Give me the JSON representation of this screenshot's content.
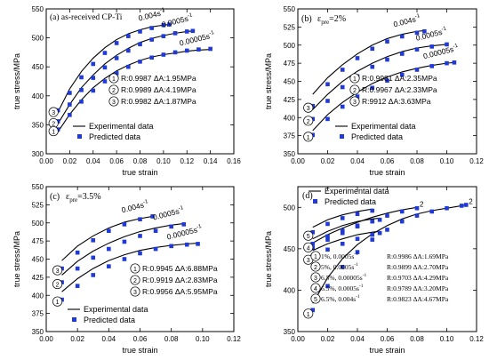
{
  "chart_data": [
    {
      "type": "scatter",
      "panel_label": "(a) as-received CP-Ti",
      "xlabel": "true strain",
      "ylabel": "true stress/MPa",
      "xlim": [
        0.0,
        0.16
      ],
      "ylim": [
        300,
        550
      ],
      "xticks": [
        "0.00",
        "0.02",
        "0.04",
        "0.06",
        "0.08",
        "0.10",
        "0.12",
        "0.14",
        "0.16"
      ],
      "yticks": [
        "300",
        "350",
        "400",
        "450",
        "500",
        "550"
      ],
      "legend": {
        "placement": "bottom-right",
        "entries": [
          "Experimental data",
          "Predicted data"
        ]
      },
      "stats": [
        {
          "marker": "①",
          "text": "R:0.9987 ΔA:1.95MPa"
        },
        {
          "marker": "②",
          "text": "R:0.9989 ΔA:4.19MPa"
        },
        {
          "marker": "③",
          "text": "R:0.9982 ΔA:1.87MPa"
        }
      ],
      "series": [
        {
          "name": "0.004s-1",
          "curve_label": "0.004s",
          "curve_label_sup": "-1",
          "marker": "③",
          "x": [
            0.01,
            0.02,
            0.03,
            0.04,
            0.05,
            0.06,
            0.07,
            0.08,
            0.09,
            0.1,
            0.105
          ],
          "exp_y": [
            372,
            412,
            442,
            465,
            483,
            497,
            507,
            514,
            519,
            522,
            523
          ],
          "pred_y": [
            375,
            405,
            432,
            455,
            474,
            491,
            503,
            511,
            517,
            522,
            523
          ]
        },
        {
          "name": "0.0005s-1",
          "curve_label": "0.0005s",
          "curve_label_sup": "-1",
          "marker": "②",
          "x": [
            0.01,
            0.02,
            0.03,
            0.04,
            0.05,
            0.06,
            0.07,
            0.08,
            0.09,
            0.1,
            0.11,
            0.12,
            0.125
          ],
          "exp_y": [
            352,
            385,
            414,
            436,
            455,
            470,
            482,
            492,
            499,
            504,
            508,
            511,
            512
          ],
          "pred_y": [
            356,
            385,
            410,
            431,
            449,
            465,
            478,
            489,
            497,
            503,
            508,
            511,
            512
          ]
        },
        {
          "name": "0.00005s-1",
          "curve_label": "0.00005s",
          "curve_label_sup": "-1",
          "marker": "①",
          "x": [
            0.01,
            0.02,
            0.03,
            0.04,
            0.05,
            0.06,
            0.07,
            0.08,
            0.09,
            0.1,
            0.11,
            0.12,
            0.13,
            0.14
          ],
          "exp_y": [
            338,
            368,
            393,
            414,
            430,
            443,
            453,
            461,
            467,
            471,
            474,
            477,
            479,
            480
          ],
          "pred_y": [
            342,
            367,
            390,
            409,
            425,
            439,
            450,
            459,
            466,
            471,
            475,
            478,
            480,
            481
          ]
        }
      ]
    },
    {
      "type": "scatter",
      "panel_label": "(b)",
      "panel_eps_main": "ε",
      "panel_eps_sub": "pre",
      "panel_eps_value": "=2%",
      "xlabel": "true strain",
      "ylabel": "true stress/MPa",
      "xlim": [
        0.0,
        0.12
      ],
      "ylim": [
        350,
        550
      ],
      "xticks": [
        "0.00",
        "0.02",
        "0.04",
        "0.06",
        "0.08",
        "0.10",
        "0.12"
      ],
      "yticks": [
        "350",
        "375",
        "400",
        "425",
        "450",
        "475",
        "500",
        "525",
        "550"
      ],
      "legend": {
        "placement": "bottom-right",
        "entries": [
          "Experimental data",
          "Predicted data"
        ]
      },
      "stats": [
        {
          "marker": "①",
          "text": "R:0.9981 ΔA:2.35MPa"
        },
        {
          "marker": "②",
          "text": "R:0.9967 ΔA:2.33MPa"
        },
        {
          "marker": "③",
          "text": "R:9912 ΔA:3.63MPa"
        }
      ],
      "series": [
        {
          "name": "0.004s-1",
          "curve_label": "0.004s",
          "curve_label_sup": "-1",
          "marker": "③",
          "x": [
            0.01,
            0.02,
            0.03,
            0.04,
            0.05,
            0.06,
            0.07,
            0.08,
            0.085
          ],
          "exp_y": [
            432,
            455,
            473,
            488,
            500,
            509,
            515,
            519,
            520
          ],
          "pred_y": [
            416,
            446,
            466,
            482,
            495,
            505,
            512,
            517,
            519
          ]
        },
        {
          "name": "0.0005s-1",
          "curve_label": "0.0005s",
          "curve_label_sup": "-1",
          "marker": "②",
          "x": [
            0.01,
            0.02,
            0.03,
            0.04,
            0.05,
            0.06,
            0.07,
            0.08,
            0.09,
            0.1
          ],
          "exp_y": [
            411,
            432,
            450,
            464,
            475,
            484,
            491,
            496,
            499,
            501
          ],
          "pred_y": [
            398,
            423,
            442,
            457,
            470,
            480,
            488,
            494,
            498,
            501
          ]
        },
        {
          "name": "0.00005s-1",
          "curve_label": "0.00005s",
          "curve_label_sup": "-1",
          "marker": "①",
          "x": [
            0.01,
            0.02,
            0.03,
            0.04,
            0.05,
            0.06,
            0.07,
            0.08,
            0.09,
            0.1,
            0.105
          ],
          "exp_y": [
            382,
            404,
            421,
            435,
            447,
            456,
            463,
            468,
            472,
            475,
            476
          ],
          "pred_y": [
            376,
            398,
            415,
            429,
            441,
            451,
            459,
            466,
            471,
            475,
            476
          ]
        }
      ]
    },
    {
      "type": "scatter",
      "panel_label": "(c)",
      "panel_eps_main": "ε",
      "panel_eps_sub": "pre",
      "panel_eps_value": "=3.5%",
      "xlabel": "true strain",
      "ylabel": "true stress/MPa",
      "xlim": [
        0.0,
        0.12
      ],
      "ylim": [
        350,
        550
      ],
      "xticks": [
        "0.00",
        "0.02",
        "0.04",
        "0.06",
        "0.08",
        "0.10",
        "0.12"
      ],
      "yticks": [
        "350",
        "375",
        "400",
        "425",
        "450",
        "475",
        "500",
        "525",
        "550"
      ],
      "legend": {
        "placement": "bottom-right",
        "entries": [
          "Experimental data",
          "Predicted data"
        ]
      },
      "stats": [
        {
          "marker": "①",
          "text": "R:0.9945 ΔA:6.88MPa"
        },
        {
          "marker": "②",
          "text": "R:0.9919 ΔA:2.83MPa"
        },
        {
          "marker": "③",
          "text": "R:0.9956 ΔA:5.95MPa"
        }
      ],
      "series": [
        {
          "name": "0.004s-1",
          "curve_label": "0.004s",
          "curve_label_sup": "-1",
          "marker": "③",
          "x": [
            0.01,
            0.02,
            0.03,
            0.04,
            0.05,
            0.06,
            0.068
          ],
          "exp_y": [
            448,
            468,
            482,
            493,
            501,
            506,
            509
          ],
          "pred_y": [
            437,
            459,
            476,
            489,
            498,
            505,
            509
          ]
        },
        {
          "name": "0.0005s-1",
          "curve_label": "0.0005s",
          "curve_label_sup": "-1",
          "marker": "②",
          "x": [
            0.01,
            0.02,
            0.03,
            0.04,
            0.05,
            0.06,
            0.07,
            0.08,
            0.088
          ],
          "exp_y": [
            428,
            447,
            461,
            472,
            481,
            488,
            493,
            497,
            499
          ],
          "pred_y": [
            418,
            437,
            452,
            464,
            474,
            482,
            489,
            495,
            498
          ]
        },
        {
          "name": "0.00005s-1",
          "curve_label": "0.00005s",
          "curve_label_sup": "-1",
          "marker": "①",
          "x": [
            0.01,
            0.02,
            0.03,
            0.04,
            0.05,
            0.06,
            0.07,
            0.08,
            0.09,
            0.097
          ],
          "exp_y": [
            405,
            423,
            437,
            448,
            456,
            462,
            466,
            469,
            471,
            472
          ],
          "pred_y": [
            394,
            413,
            428,
            440,
            450,
            458,
            464,
            468,
            470,
            471
          ]
        }
      ]
    },
    {
      "type": "scatter",
      "panel_label": "(d)",
      "xlabel": "true strain",
      "ylabel": "true stress/MPa",
      "xlim": [
        0.0,
        0.12
      ],
      "ylim": [
        350,
        525
      ],
      "xticks": [
        "0.00",
        "0.02",
        "0.04",
        "0.06",
        "0.08",
        "0.10",
        "0.12"
      ],
      "yticks": [
        "350",
        "400",
        "450",
        "500"
      ],
      "legend": {
        "placement": "top-left",
        "entries": [
          "Experimental data",
          "Predicted data"
        ]
      },
      "stats": [
        {
          "marker": "①",
          "text": "1%, 0.0005s",
          "sup": "-1",
          "fit": "R:0.9986 ΔA:1.69MPa"
        },
        {
          "marker": "②",
          "text": "5%, 0.0005s",
          "sup": "-1",
          "fit": "R:0.9899 ΔA:2.70MPa"
        },
        {
          "marker": "③",
          "text": "6.5%, 0.00005s",
          "sup": "-1",
          "fit": "R:0.9703 ΔA:4.29MPa"
        },
        {
          "marker": "④",
          "text": "6.5%, 0.0005s",
          "sup": "-1",
          "fit": "R:0.9789 ΔA:3.20MPa"
        },
        {
          "marker": "⑤",
          "text": "6.5%, 0.004s",
          "sup": "-1",
          "fit": "R:0.9823 ΔA:4.67MPa"
        }
      ],
      "series": [
        {
          "name": "1%, 0.0005s-1",
          "marker": "①",
          "end_marker": "②",
          "x": [
            0.01,
            0.02,
            0.03,
            0.04,
            0.05,
            0.06,
            0.07,
            0.08,
            0.09,
            0.1,
            0.11,
            0.113
          ],
          "exp_y": [
            384,
            415,
            438,
            455,
            468,
            478,
            486,
            492,
            496,
            499,
            502,
            503
          ],
          "pred_y": [
            376,
            405,
            428,
            446,
            461,
            473,
            483,
            490,
            495,
            499,
            502,
            503
          ]
        },
        {
          "name": "5%, 0.0005s-1",
          "end_marker": "②",
          "x": [
            0.01,
            0.02,
            0.03,
            0.04,
            0.05,
            0.06,
            0.07,
            0.08
          ],
          "exp_y": [
            457,
            467,
            475,
            482,
            488,
            493,
            497,
            500
          ],
          "pred_y": [
            451,
            461,
            469,
            477,
            484,
            490,
            495,
            499
          ]
        },
        {
          "name": "6.5%, 0.00005s-1",
          "marker": "③",
          "x": [
            0.01,
            0.02,
            0.03,
            0.04,
            0.05,
            0.055
          ],
          "exp_y": [
            448,
            456,
            462,
            467,
            470,
            471
          ],
          "pred_y": [
            441,
            449,
            456,
            462,
            467,
            469
          ]
        },
        {
          "name": "6.5%, 0.0005s-1",
          "marker": "④",
          "x": [
            0.01,
            0.02,
            0.03,
            0.04,
            0.05,
            0.055
          ],
          "exp_y": [
            462,
            471,
            478,
            483,
            486,
            487
          ],
          "pred_y": [
            456,
            465,
            472,
            478,
            483,
            485
          ]
        },
        {
          "name": "6.5%, 0.004s-1",
          "marker": "⑤",
          "x": [
            0.01,
            0.02,
            0.03,
            0.04,
            0.05
          ],
          "exp_y": [
            476,
            485,
            491,
            495,
            498
          ],
          "pred_y": [
            470,
            480,
            487,
            492,
            496
          ]
        }
      ]
    }
  ]
}
